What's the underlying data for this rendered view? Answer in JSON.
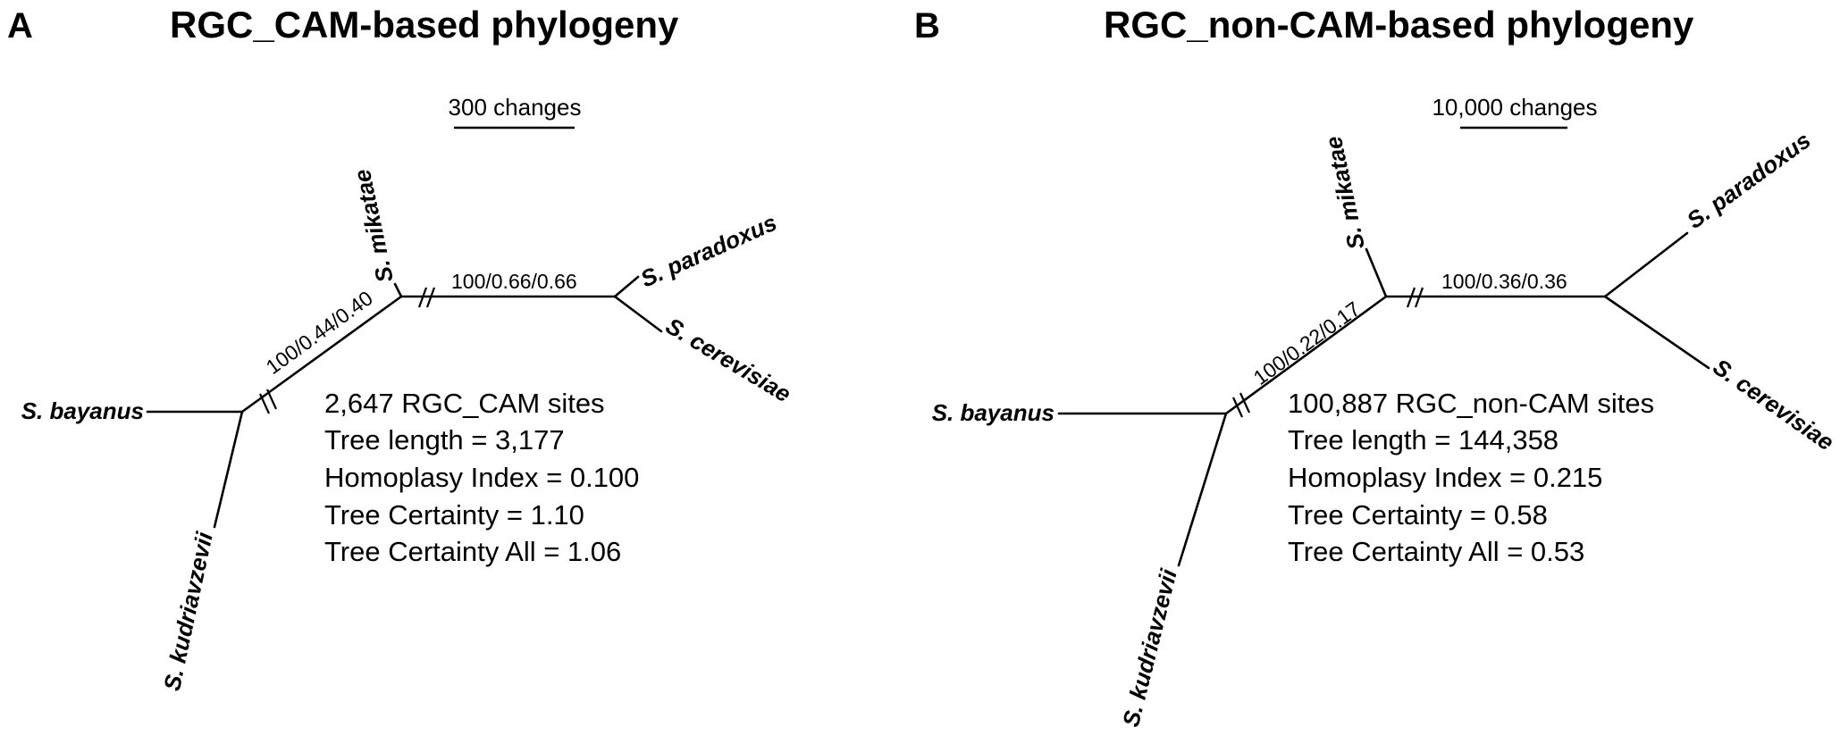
{
  "panels": [
    {
      "letter": "A",
      "title": "RGC_CAM-based phylogeny",
      "scale_label": "300 changes",
      "taxa": {
        "mikatae": "S. mikatae",
        "paradoxus": "S. paradoxus",
        "cerevisiae": "S. cerevisiae",
        "bayanus": "S. bayanus",
        "kudriavzevii": "S. kudriavzevii"
      },
      "supports": {
        "internal_left": "100/0.44/0.40",
        "internal_right": "100/0.66/0.66"
      },
      "stats": [
        "2,647 RGC_CAM sites",
        "Tree length = 3,177",
        "Homoplasy Index = 0.100",
        "Tree Certainty = 1.10",
        "Tree Certainty All = 1.06"
      ]
    },
    {
      "letter": "B",
      "title": "RGC_non-CAM-based phylogeny",
      "scale_label": "10,000 changes",
      "taxa": {
        "mikatae": "S. mikatae",
        "paradoxus": "S. paradoxus",
        "cerevisiae": "S. cerevisiae",
        "bayanus": "S. bayanus",
        "kudriavzevii": "S. kudriavzevii"
      },
      "supports": {
        "internal_left": "100/0.22/0.17",
        "internal_right": "100/0.36/0.36"
      },
      "stats": [
        "100,887 RGC_non-CAM sites",
        "Tree length = 144,358",
        "Homoplasy Index = 0.215",
        "Tree Certainty = 0.58",
        "Tree Certainty All = 0.53"
      ]
    }
  ]
}
